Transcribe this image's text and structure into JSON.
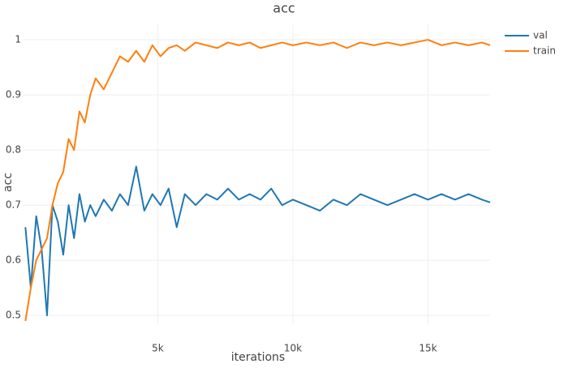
{
  "chart_data": {
    "type": "line",
    "title": "acc",
    "xlabel": "iterations",
    "ylabel": "acc",
    "x": [
      100,
      300,
      500,
      700,
      900,
      1100,
      1300,
      1500,
      1700,
      1900,
      2100,
      2300,
      2500,
      2700,
      3000,
      3300,
      3600,
      3900,
      4200,
      4500,
      4800,
      5100,
      5400,
      5700,
      6000,
      6400,
      6800,
      7200,
      7600,
      8000,
      8400,
      8800,
      9200,
      9600,
      10000,
      10500,
      11000,
      11500,
      12000,
      12500,
      13000,
      13500,
      14000,
      14500,
      15000,
      15500,
      16000,
      16500,
      17000,
      17300
    ],
    "series": [
      {
        "name": "val",
        "color": "#1f77b4",
        "values": [
          0.66,
          0.55,
          0.68,
          0.62,
          0.5,
          0.7,
          0.67,
          0.61,
          0.7,
          0.64,
          0.72,
          0.67,
          0.7,
          0.68,
          0.71,
          0.69,
          0.72,
          0.7,
          0.77,
          0.69,
          0.72,
          0.7,
          0.73,
          0.66,
          0.72,
          0.7,
          0.72,
          0.71,
          0.73,
          0.71,
          0.72,
          0.71,
          0.73,
          0.7,
          0.71,
          0.7,
          0.69,
          0.71,
          0.7,
          0.72,
          0.71,
          0.7,
          0.71,
          0.72,
          0.71,
          0.72,
          0.71,
          0.72,
          0.71,
          0.705
        ]
      },
      {
        "name": "train",
        "color": "#ff7f0e",
        "values": [
          0.49,
          0.55,
          0.6,
          0.62,
          0.64,
          0.7,
          0.74,
          0.76,
          0.82,
          0.8,
          0.87,
          0.85,
          0.9,
          0.93,
          0.91,
          0.94,
          0.97,
          0.96,
          0.98,
          0.96,
          0.99,
          0.97,
          0.985,
          0.99,
          0.98,
          0.995,
          0.99,
          0.985,
          0.995,
          0.99,
          0.995,
          0.985,
          0.99,
          0.995,
          0.99,
          0.995,
          0.99,
          0.995,
          0.985,
          0.995,
          0.99,
          0.995,
          0.99,
          0.995,
          1.0,
          0.99,
          0.995,
          0.99,
          0.995,
          0.99
        ]
      }
    ],
    "xlim": [
      0,
      17300
    ],
    "ylim": [
      0.484,
      1.028
    ],
    "xticks": [
      {
        "value": 5000,
        "label": "5k"
      },
      {
        "value": 10000,
        "label": "10k"
      },
      {
        "value": 15000,
        "label": "15k"
      }
    ],
    "yticks": [
      0.5,
      0.6,
      0.7,
      0.8,
      0.9,
      1
    ],
    "grid": true,
    "legend": "top-right"
  }
}
